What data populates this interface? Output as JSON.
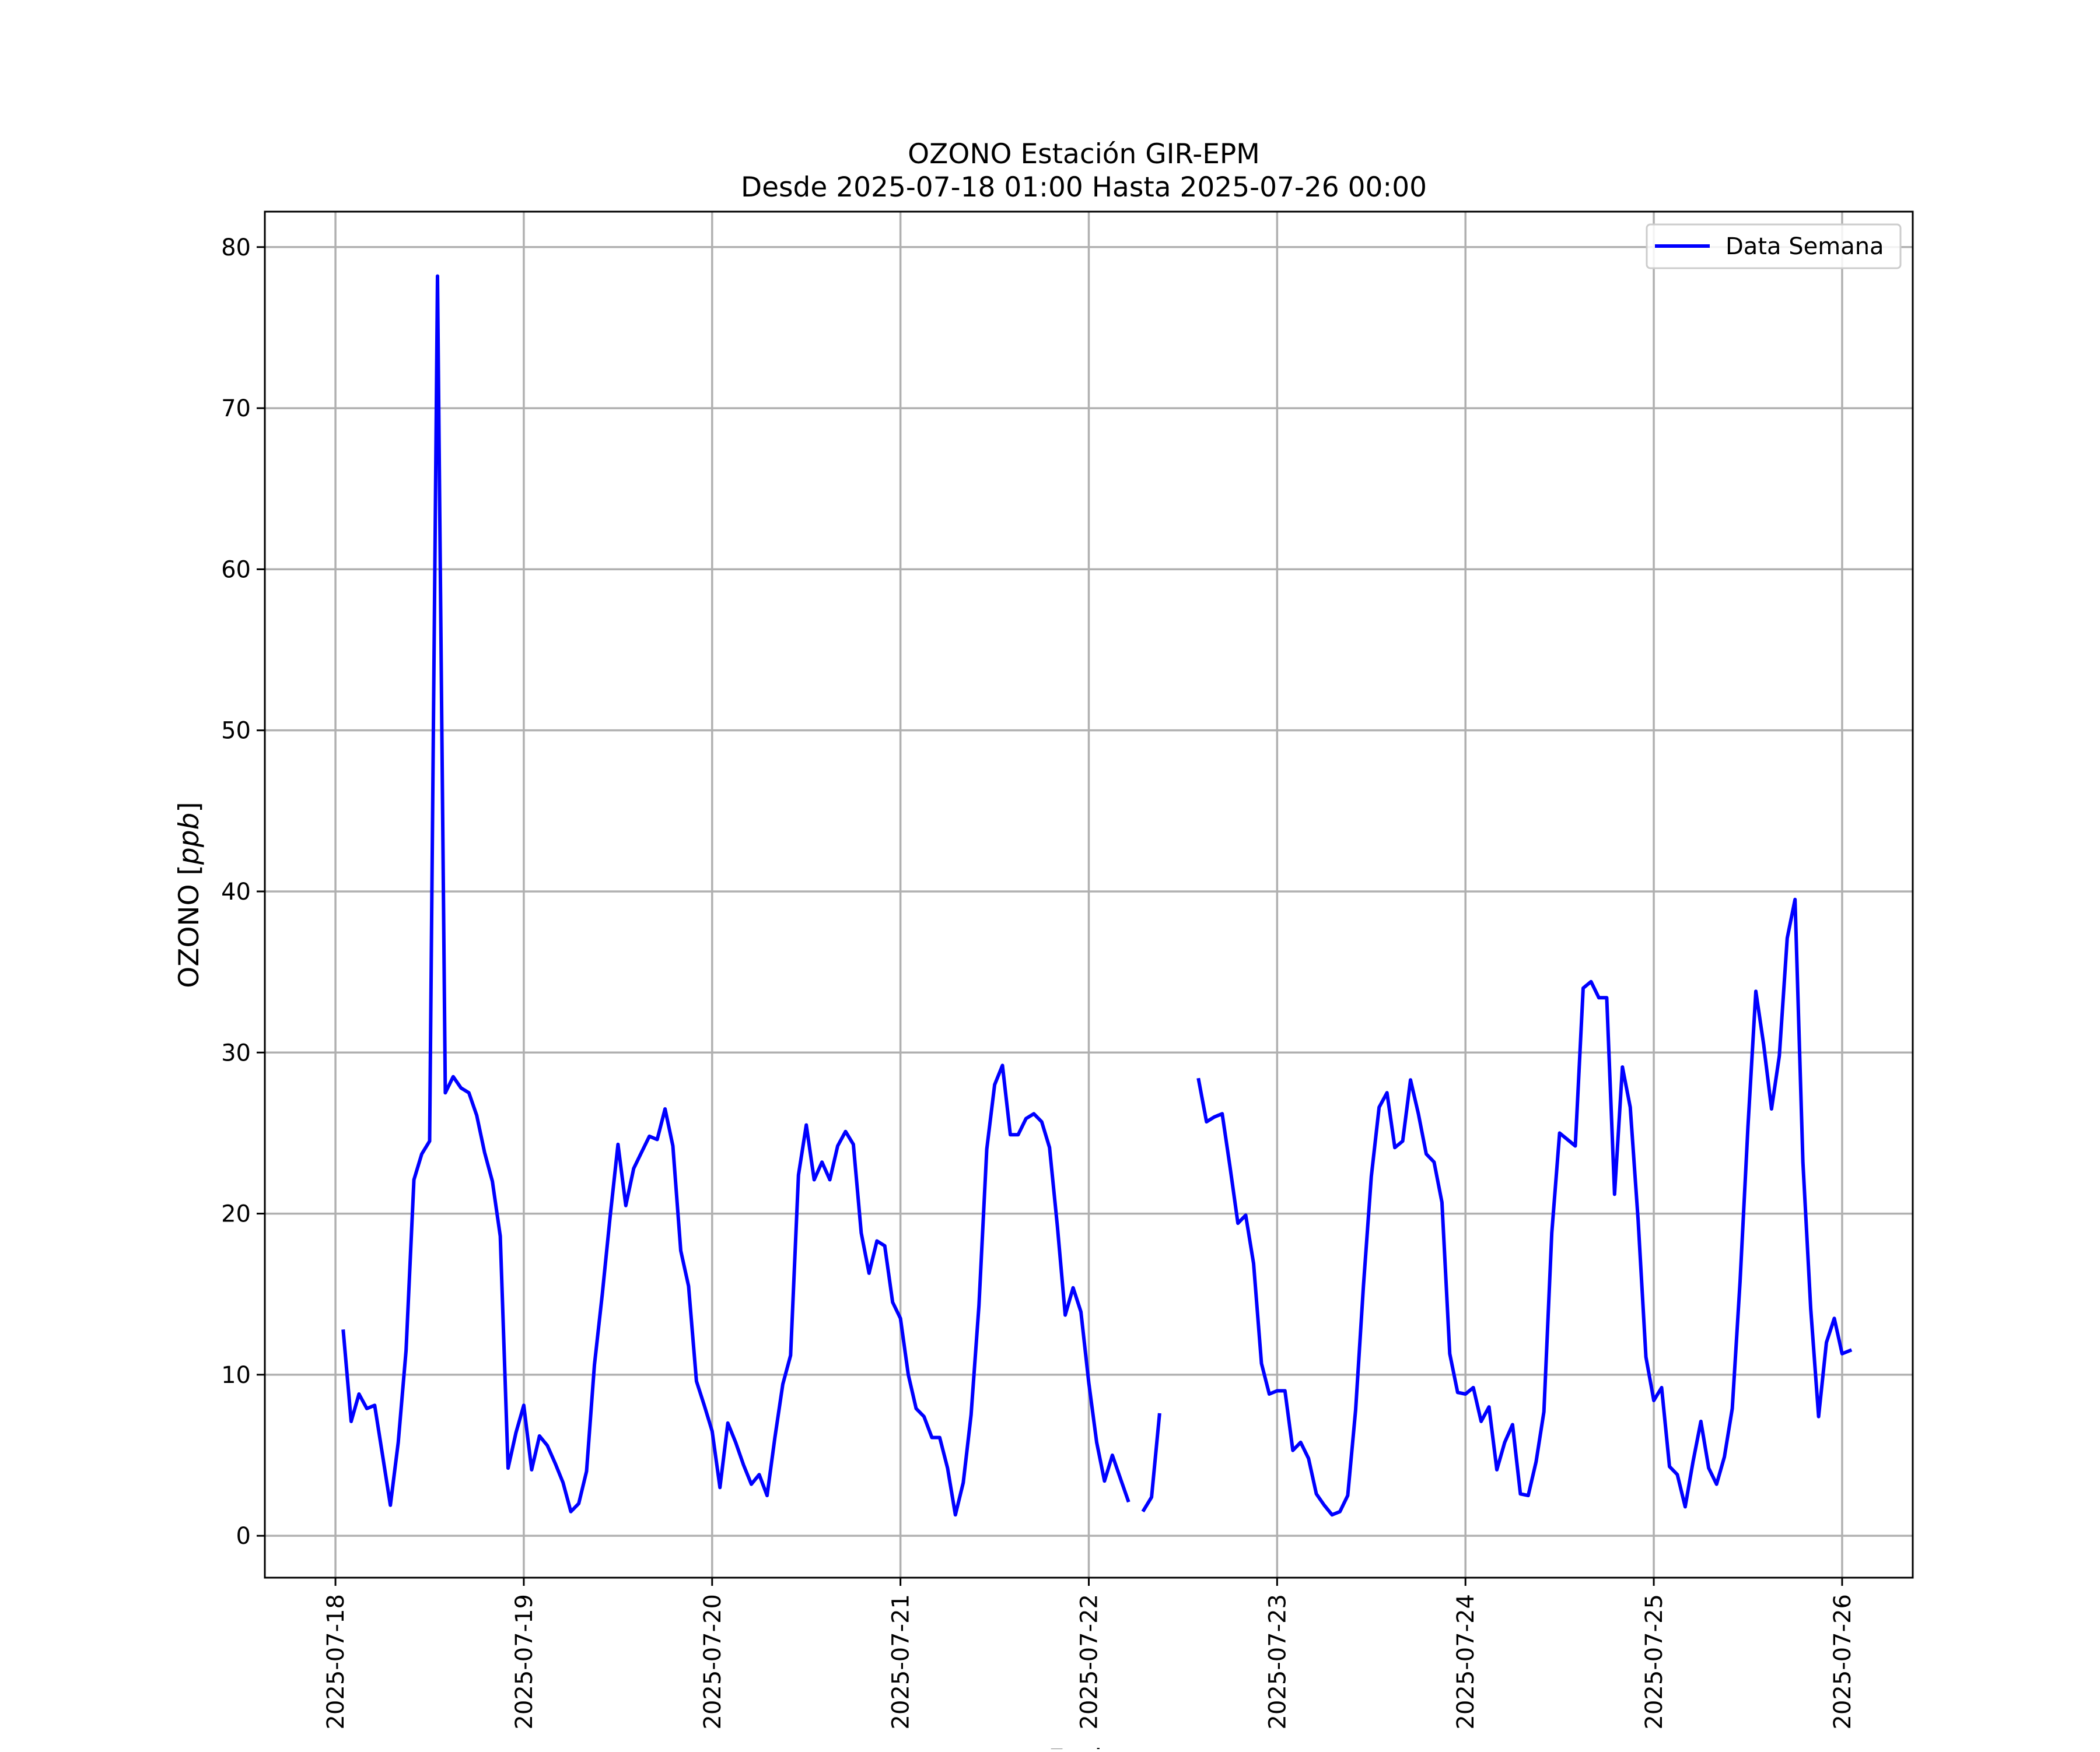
{
  "chart_data": {
    "type": "line",
    "title": "OZONO Estación GIR-EPM",
    "subtitle": "Desde 2025-07-18 01:00 Hasta 2025-07-26 00:00",
    "xlabel": "Fecha",
    "ylabel": "OZONO [ppb]",
    "ylabel_plain": "OZONO [",
    "ylabel_italic": "ppb",
    "ylabel_close": "]",
    "xlim": [
      "2025-07-17 15:00",
      "2025-07-26 09:00"
    ],
    "ylim": [
      -2.6,
      82.2
    ],
    "y_ticks": [
      0,
      10,
      20,
      30,
      40,
      50,
      60,
      70,
      80
    ],
    "x_ticks": [
      "2025-07-18",
      "2025-07-19",
      "2025-07-20",
      "2025-07-21",
      "2025-07-22",
      "2025-07-23",
      "2025-07-24",
      "2025-07-25",
      "2025-07-26"
    ],
    "grid": true,
    "legend_position": "top-right",
    "color": "#0000ff",
    "series": [
      {
        "name": "Data Semana",
        "color": "#0000ff",
        "start": "2025-07-18 01:00",
        "interval_hours": 1,
        "values": [
          12.7,
          7.1,
          8.8,
          7.9,
          8.1,
          5.0,
          1.9,
          5.8,
          11.5,
          22.1,
          23.7,
          24.5,
          78.2,
          27.5,
          28.5,
          27.8,
          27.5,
          26.1,
          23.8,
          22.0,
          18.6,
          4.2,
          6.4,
          8.1,
          4.1,
          6.2,
          5.6,
          4.5,
          3.3,
          1.5,
          2.0,
          4.0,
          10.6,
          15.0,
          19.8,
          24.3,
          20.5,
          22.8,
          23.8,
          24.8,
          24.6,
          26.5,
          24.2,
          17.7,
          15.5,
          9.6,
          8.1,
          6.5,
          3.0,
          7.0,
          5.8,
          4.4,
          3.2,
          3.8,
          2.5,
          6.1,
          9.4,
          11.2,
          22.4,
          25.5,
          22.1,
          23.2,
          22.1,
          24.2,
          25.1,
          24.3,
          18.8,
          16.3,
          18.3,
          18.0,
          14.5,
          13.5,
          10.0,
          7.9,
          7.4,
          6.1,
          6.1,
          4.2,
          1.3,
          3.3,
          7.5,
          14.3,
          24.0,
          28.0,
          29.2,
          24.9,
          24.9,
          25.9,
          26.2,
          25.7,
          24.1,
          19.2,
          13.7,
          15.4,
          13.9,
          9.5,
          5.8,
          3.4,
          5.0,
          3.6,
          2.2,
          null,
          1.6,
          2.4,
          7.5,
          null,
          null,
          null,
          null,
          28.3,
          25.7,
          26.0,
          26.2,
          22.9,
          19.4,
          19.9,
          16.9,
          10.7,
          8.8,
          9.0,
          9.0,
          5.3,
          5.8,
          4.8,
          2.6,
          1.9,
          1.3,
          1.5,
          2.5,
          7.8,
          15.5,
          22.3,
          26.6,
          27.5,
          24.1,
          24.5,
          28.3,
          26.2,
          23.7,
          23.2,
          20.7,
          11.3,
          8.9,
          8.8,
          9.2,
          7.1,
          8.0,
          4.1,
          5.8,
          6.9,
          2.6,
          2.5,
          4.6,
          7.7,
          18.8,
          25.0,
          24.6,
          24.2,
          34.0,
          34.4,
          33.4,
          33.4,
          21.2,
          29.1,
          26.6,
          19.6,
          11.1,
          8.4,
          9.2,
          4.3,
          3.8,
          1.8,
          4.6,
          7.1,
          4.2,
          3.2,
          4.9,
          7.9,
          15.8,
          25.4,
          33.8,
          30.5,
          26.5,
          29.8,
          37.1,
          39.5,
          23.2,
          14.1,
          7.4,
          12.0,
          13.5,
          11.3,
          11.5
        ]
      }
    ]
  }
}
